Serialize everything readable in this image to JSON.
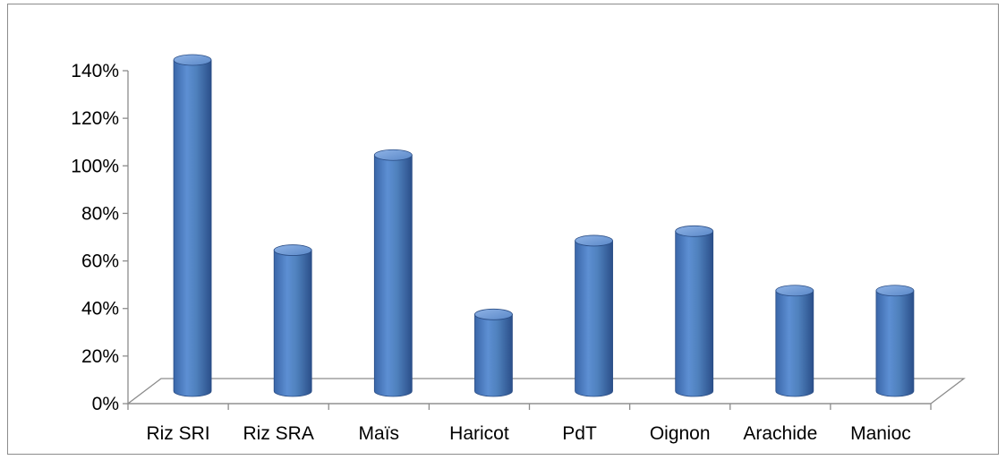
{
  "chart_data": {
    "type": "bar",
    "title": "",
    "xlabel": "",
    "ylabel": "",
    "categories": [
      "Riz SRI",
      "Riz SRA",
      "Maïs",
      "Haricot",
      "PdT",
      "Oignon",
      "Arachide",
      "Manioc"
    ],
    "values": [
      1.4,
      0.6,
      1.0,
      0.33,
      0.64,
      0.68,
      0.43,
      0.43
    ],
    "ylim": [
      0,
      1.4
    ],
    "yticks": [
      "0%",
      "20%",
      "40%",
      "60%",
      "80%",
      "100%",
      "120%",
      "140%"
    ],
    "grid": false,
    "legend": "none",
    "colors": {
      "bar": "#4f81bd",
      "bar_dark": "#2f5597",
      "bar_light": "#7ea6de",
      "axis": "#8c8c8c"
    }
  }
}
